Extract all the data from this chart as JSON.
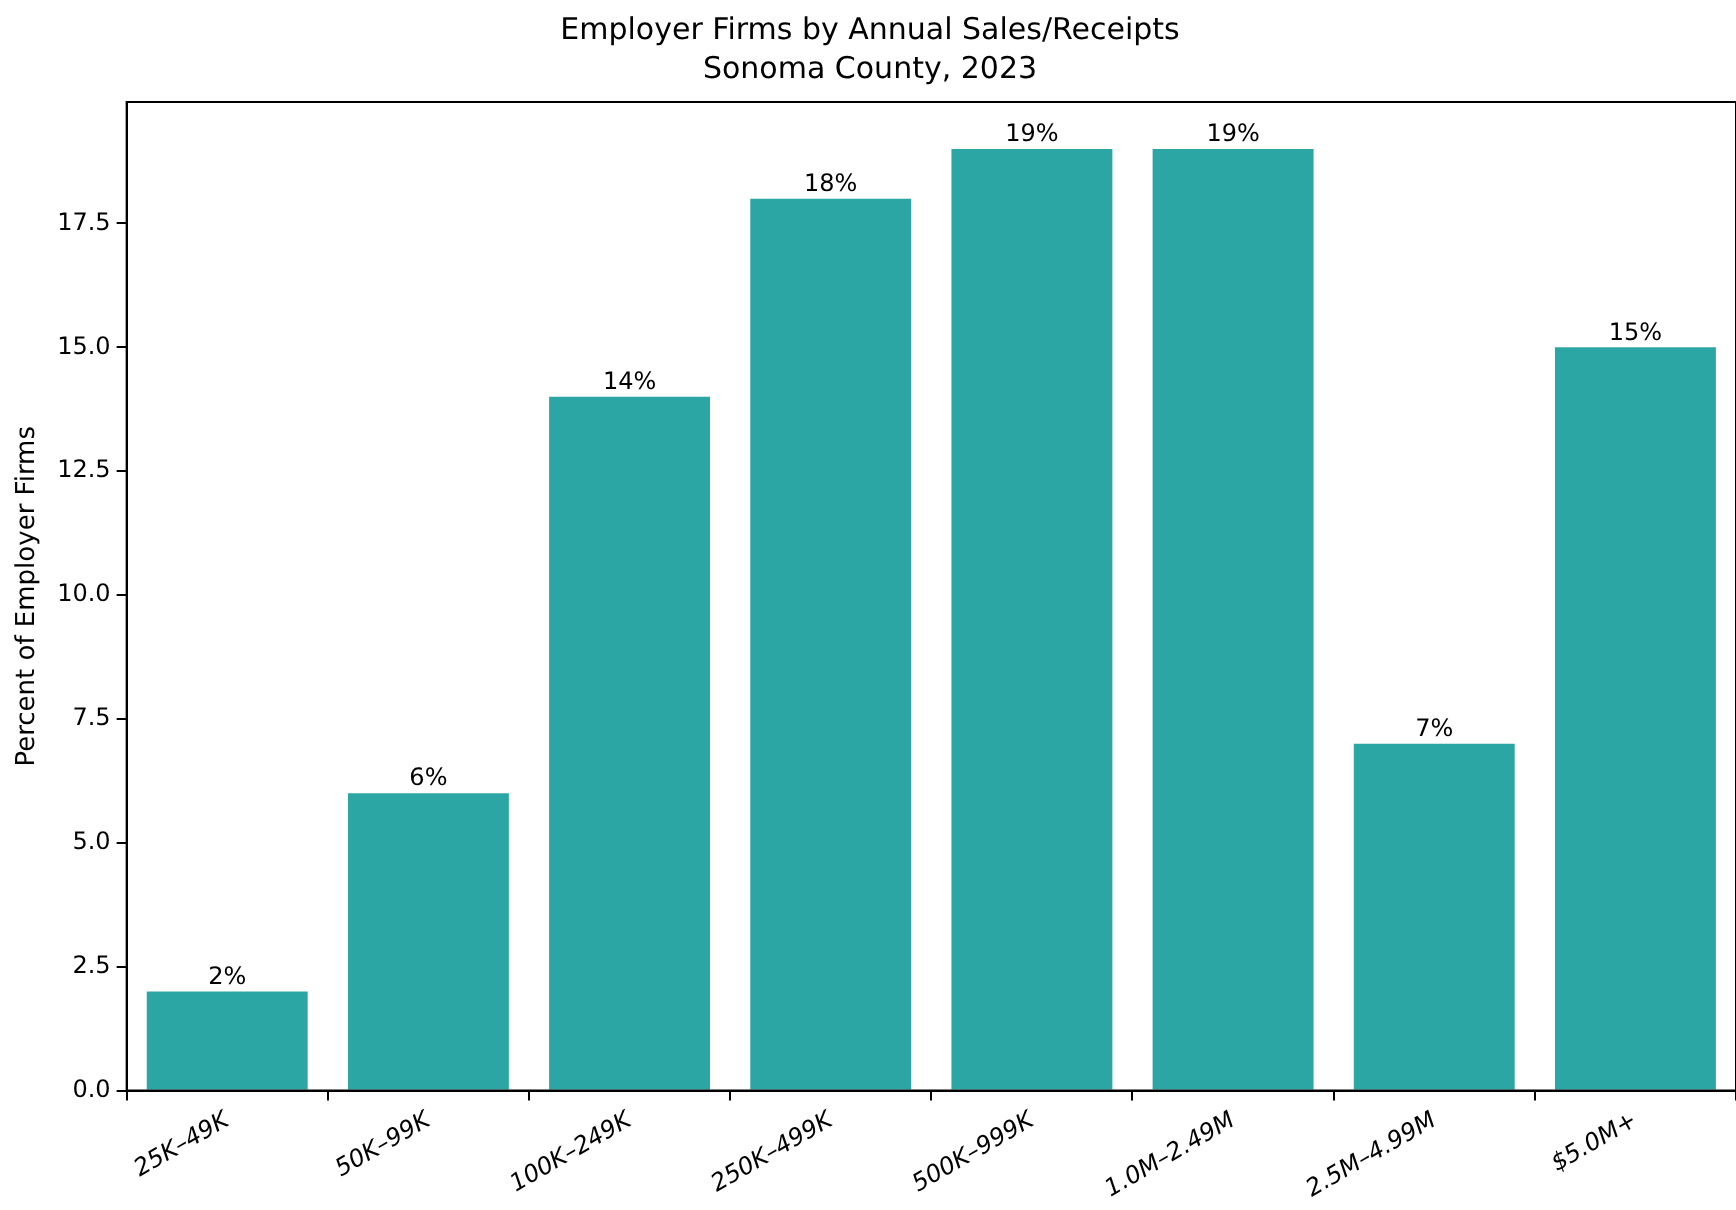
{
  "chart_data": {
    "type": "bar",
    "title": "Employer Firms by Annual Sales/Receipts",
    "subtitle": "Sonoma County, 2023",
    "ylabel": "Percent of Employer Firms",
    "categories": [
      "25K–49K",
      "50K–99K",
      "100K–249K",
      "250K–499K",
      "500K–999K",
      "1.0M–2.49M",
      "2.5M–4.99M",
      "$5.0M+"
    ],
    "values": [
      2,
      6,
      14,
      18,
      19,
      19,
      7,
      15
    ],
    "color": "#2ca6a4",
    "value_labels": [
      "2%",
      "6%",
      "14%",
      "18%",
      "19%",
      "19%",
      "7%",
      "15%"
    ],
    "ylim": [
      0,
      19.95
    ],
    "yticks": [
      {
        "value": 0,
        "label": "0.0"
      },
      {
        "value": 2.5,
        "label": "2.5"
      },
      {
        "value": 5,
        "label": "5.0"
      },
      {
        "value": 7.5,
        "label": "7.5"
      },
      {
        "value": 10,
        "label": "10.0"
      },
      {
        "value": 12.5,
        "label": "12.5"
      },
      {
        "value": 15,
        "label": "15.0"
      },
      {
        "value": 17.5,
        "label": "17.5"
      }
    ],
    "grid": false,
    "legend": false
  }
}
